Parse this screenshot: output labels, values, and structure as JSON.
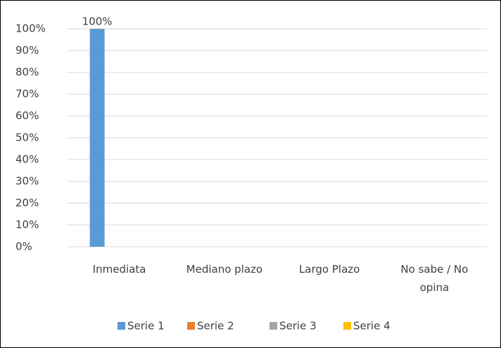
{
  "chart_data": {
    "type": "bar",
    "categories": [
      "Inmediata",
      "Mediano plazo",
      "Largo Plazo",
      "No sabe / No opina"
    ],
    "series": [
      {
        "name": "Serie 1",
        "color": "#5b9bd5",
        "values": [
          100,
          null,
          null,
          null
        ],
        "value_labels": [
          "100%",
          null,
          null,
          null
        ]
      },
      {
        "name": "Serie 2",
        "color": "#ed7d31",
        "values": [
          null,
          null,
          null,
          null
        ]
      },
      {
        "name": "Serie 3",
        "color": "#a5a5a5",
        "values": [
          null,
          null,
          null,
          null
        ]
      },
      {
        "name": "Serie 4",
        "color": "#ffc000",
        "values": [
          null,
          null,
          null,
          null
        ]
      }
    ],
    "ylim": [
      0,
      100
    ],
    "yticks": [
      {
        "value": 0,
        "label": "0%"
      },
      {
        "value": 10,
        "label": "10%"
      },
      {
        "value": 20,
        "label": "20%"
      },
      {
        "value": 30,
        "label": "30%"
      },
      {
        "value": 40,
        "label": "40%"
      },
      {
        "value": 50,
        "label": "50%"
      },
      {
        "value": 60,
        "label": "60%"
      },
      {
        "value": 70,
        "label": "70%"
      },
      {
        "value": 80,
        "label": "80%"
      },
      {
        "value": 90,
        "label": "90%"
      },
      {
        "value": 100,
        "label": "100%"
      }
    ],
    "grid": true,
    "legend": "bottom"
  }
}
